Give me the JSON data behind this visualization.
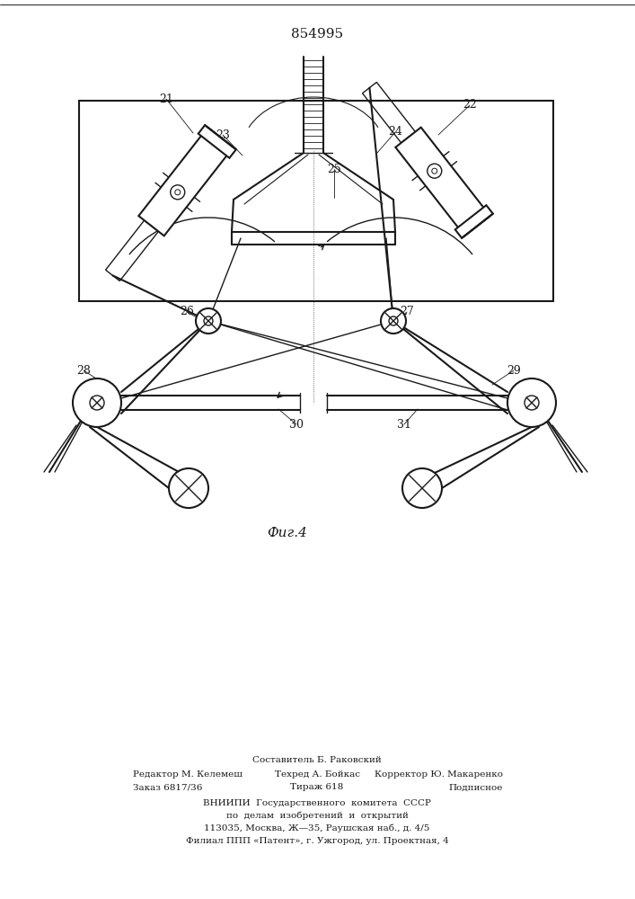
{
  "title": "854995",
  "fig_label": "Фиг.4",
  "bg_color": "#ffffff",
  "line_color": "#1a1a1a",
  "footer_texts": [
    [
      353,
      845,
      "Составитель Б. Раковский",
      "center",
      7.5
    ],
    [
      148,
      862,
      "Редактор М. Келемеш",
      "left",
      7.5
    ],
    [
      353,
      862,
      "Техред А. Бойкас",
      "center",
      7.5
    ],
    [
      560,
      862,
      "Корректор Ю. Макаренко",
      "right",
      7.5
    ],
    [
      148,
      876,
      "Заказ 6817/36",
      "left",
      7.5
    ],
    [
      353,
      876,
      "Тираж 618",
      "center",
      7.5
    ],
    [
      560,
      876,
      "Подписное",
      "right",
      7.5
    ],
    [
      353,
      893,
      "ВНИИПИ  Государственного  комитета  СССР",
      "center",
      7.5
    ],
    [
      353,
      907,
      "по  делам  изобретений  и  открытий",
      "center",
      7.5
    ],
    [
      353,
      921,
      "113035, Москва, Ж—35, Раушская наб., д. 4/5",
      "center",
      7.5
    ],
    [
      353,
      935,
      "Филиал ППП «Патент», г. Ужгород, ул. Проектная, 4",
      "center",
      7.5
    ]
  ],
  "labels": [
    [
      "21",
      185,
      110,
      215,
      148
    ],
    [
      "22",
      523,
      117,
      488,
      150
    ],
    [
      "23",
      248,
      150,
      270,
      173
    ],
    [
      "24",
      440,
      147,
      420,
      170
    ],
    [
      "25",
      372,
      188,
      372,
      220
    ],
    [
      "26",
      208,
      347,
      232,
      360
    ],
    [
      "27",
      453,
      347,
      438,
      360
    ],
    [
      "28",
      93,
      412,
      118,
      428
    ],
    [
      "29",
      572,
      412,
      548,
      428
    ],
    [
      "30",
      330,
      472,
      310,
      455
    ],
    [
      "31",
      450,
      472,
      465,
      455
    ]
  ]
}
